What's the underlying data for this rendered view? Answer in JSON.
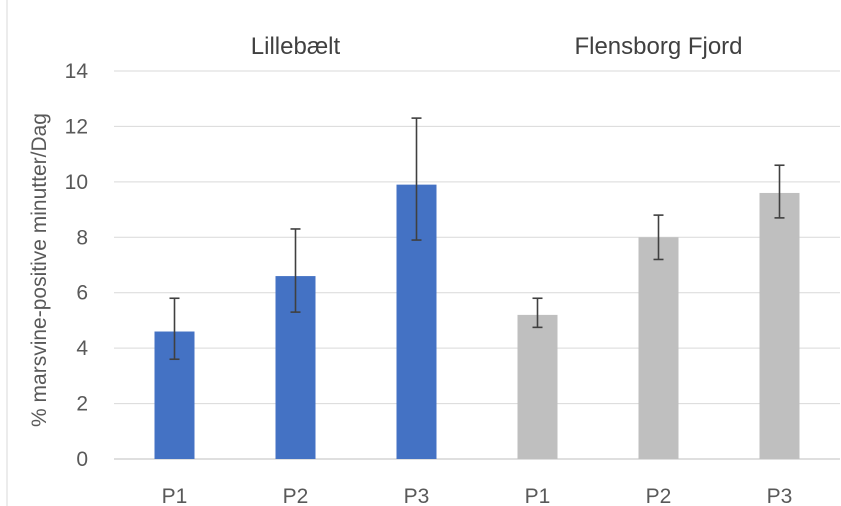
{
  "chart_data": {
    "type": "bar",
    "ylabel": "% marsvine-positive minutter/Dag",
    "ylim": [
      0,
      14
    ],
    "yticks": [
      0,
      2,
      4,
      6,
      8,
      10,
      12,
      14
    ],
    "grid": true,
    "groups": [
      {
        "name": "Lillebælt",
        "color": "#4472c4",
        "categories": [
          "P1",
          "P2",
          "P3"
        ],
        "values": [
          4.6,
          6.6,
          9.9
        ],
        "error_low": [
          3.6,
          5.3,
          7.9
        ],
        "error_high": [
          5.8,
          8.3,
          12.3
        ]
      },
      {
        "name": "Flensborg Fjord",
        "color": "#bfbfbf",
        "categories": [
          "P1",
          "P2",
          "P3"
        ],
        "values": [
          5.2,
          8.0,
          9.6
        ],
        "error_low": [
          4.75,
          7.2,
          8.7
        ],
        "error_high": [
          5.8,
          8.8,
          10.6
        ]
      }
    ]
  }
}
